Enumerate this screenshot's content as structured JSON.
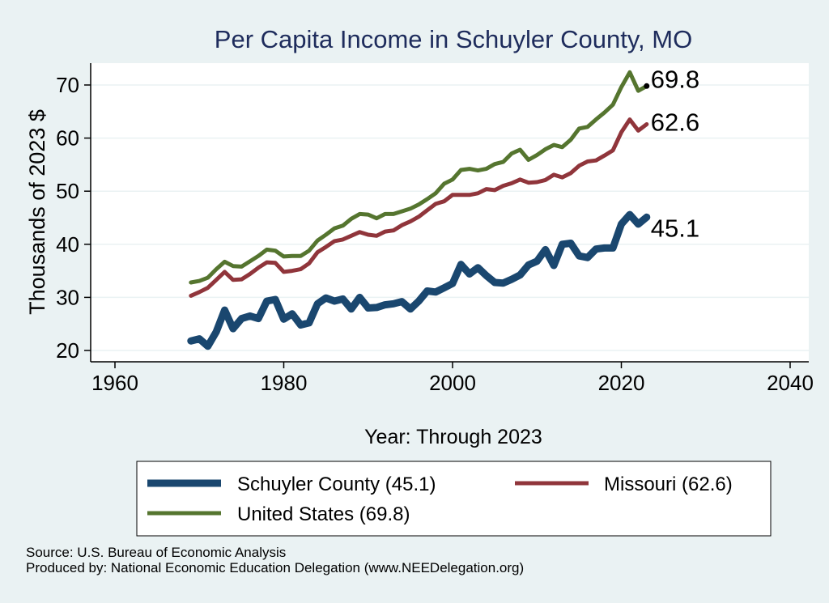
{
  "chart_data": {
    "type": "line",
    "title": "Per Capita Income in Schuyler County, MO",
    "xlabel": "Year: Through 2023",
    "ylabel": "Thousands of 2023 $",
    "xlim": [
      1960,
      2040
    ],
    "ylim": [
      20,
      75
    ],
    "x_ticks": [
      1960,
      1980,
      2000,
      2020,
      2040
    ],
    "y_ticks": [
      20,
      30,
      40,
      50,
      60,
      70
    ],
    "grid": true,
    "legend_position": "bottom",
    "x": [
      1969,
      1970,
      1971,
      1972,
      1973,
      1974,
      1975,
      1976,
      1977,
      1978,
      1979,
      1980,
      1981,
      1982,
      1983,
      1984,
      1985,
      1986,
      1987,
      1988,
      1989,
      1990,
      1991,
      1992,
      1993,
      1994,
      1995,
      1996,
      1997,
      1998,
      1999,
      2000,
      2001,
      2002,
      2003,
      2004,
      2005,
      2006,
      2007,
      2008,
      2009,
      2010,
      2011,
      2012,
      2013,
      2014,
      2015,
      2016,
      2017,
      2018,
      2019,
      2020,
      2021,
      2022,
      2023
    ],
    "series": [
      {
        "name": "Schuyler County (45.1)",
        "color": "#1a476f",
        "end_label": "45.1",
        "values": [
          21.8,
          22.2,
          20.8,
          23.5,
          27.6,
          24.1,
          26.0,
          26.5,
          26.0,
          29.3,
          29.6,
          25.9,
          26.9,
          24.8,
          25.2,
          28.8,
          29.9,
          29.3,
          29.7,
          27.8,
          30.0,
          28.0,
          28.1,
          28.6,
          28.8,
          29.2,
          27.8,
          29.3,
          31.2,
          31.0,
          31.8,
          32.6,
          36.2,
          34.4,
          35.6,
          34.1,
          32.8,
          32.7,
          33.4,
          34.2,
          36.1,
          36.8,
          39.0,
          36.0,
          40.0,
          40.2,
          37.8,
          37.5,
          39.1,
          39.3,
          39.3,
          43.8,
          45.6,
          43.8,
          45.1
        ]
      },
      {
        "name": "Missouri (62.6)",
        "color": "#90353b",
        "end_label": "62.6",
        "values": [
          30.3,
          31.0,
          31.8,
          33.3,
          34.8,
          33.3,
          33.4,
          34.4,
          35.6,
          36.6,
          36.5,
          34.8,
          35.0,
          35.3,
          36.4,
          38.5,
          39.5,
          40.6,
          40.9,
          41.6,
          42.3,
          41.8,
          41.6,
          42.4,
          42.6,
          43.6,
          44.3,
          45.2,
          46.4,
          47.6,
          48.1,
          49.3,
          49.3,
          49.3,
          49.6,
          50.4,
          50.2,
          51.0,
          51.5,
          52.2,
          51.6,
          51.7,
          52.1,
          53.1,
          52.6,
          53.4,
          54.8,
          55.6,
          55.8,
          56.7,
          57.7,
          61.1,
          63.5,
          61.4,
          62.6
        ]
      },
      {
        "name": "United States (69.8)",
        "color": "#55752f",
        "end_label": "69.8",
        "values": [
          32.8,
          33.1,
          33.7,
          35.3,
          36.7,
          35.9,
          35.8,
          36.8,
          37.8,
          39.0,
          38.8,
          37.7,
          37.8,
          37.8,
          38.8,
          40.7,
          41.8,
          43.0,
          43.5,
          44.8,
          45.7,
          45.6,
          44.9,
          45.7,
          45.7,
          46.2,
          46.7,
          47.5,
          48.5,
          49.6,
          51.4,
          52.2,
          54.0,
          54.2,
          53.9,
          54.2,
          55.1,
          55.5,
          57.1,
          57.8,
          55.9,
          56.8,
          57.9,
          58.7,
          58.3,
          59.7,
          61.8,
          62.1,
          63.5,
          64.8,
          66.3,
          69.6,
          72.4,
          68.9,
          69.8
        ]
      }
    ]
  },
  "footer": {
    "source": "Source: U.S. Bureau of Economic Analysis",
    "produced_by": "Produced by: National Economic Education Delegation (www.NEEDelegation.org)"
  }
}
